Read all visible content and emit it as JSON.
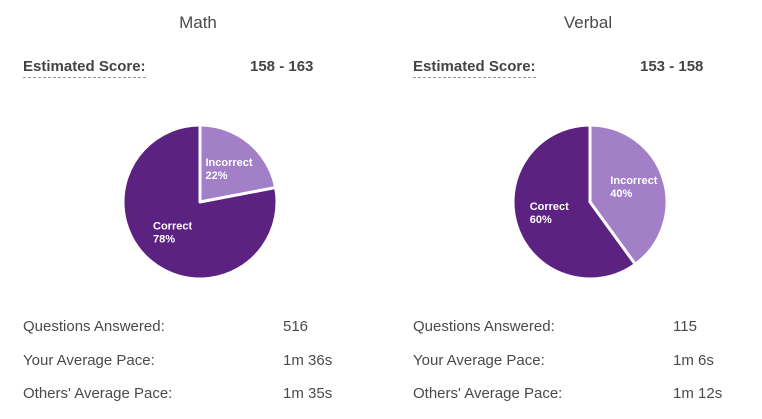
{
  "colors": {
    "correct": "#5b2282",
    "incorrect": "#a27fc7",
    "stroke": "#ffffff"
  },
  "chart_data": [
    {
      "type": "pie",
      "title": "Math",
      "slices": [
        {
          "name": "Incorrect",
          "value": 22,
          "label": "22%"
        },
        {
          "name": "Correct",
          "value": 78,
          "label": "78%"
        }
      ]
    },
    {
      "type": "pie",
      "title": "Verbal",
      "slices": [
        {
          "name": "Incorrect",
          "value": 40,
          "label": "40%"
        },
        {
          "name": "Correct",
          "value": 60,
          "label": "60%"
        }
      ]
    }
  ],
  "math": {
    "title": "Math",
    "score_label": "Estimated Score:",
    "score_value": "158 - 163",
    "stats": [
      {
        "label": "Questions Answered:",
        "value": "516"
      },
      {
        "label": "Your Average Pace:",
        "value": "1m 36s"
      },
      {
        "label": "Others' Average Pace:",
        "value": "1m 35s"
      }
    ]
  },
  "verbal": {
    "title": "Verbal",
    "score_label": "Estimated Score:",
    "score_value": "153 - 158",
    "stats": [
      {
        "label": "Questions Answered:",
        "value": "115"
      },
      {
        "label": "Your Average Pace:",
        "value": "1m 6s"
      },
      {
        "label": "Others' Average Pace:",
        "value": "1m 12s"
      }
    ]
  }
}
